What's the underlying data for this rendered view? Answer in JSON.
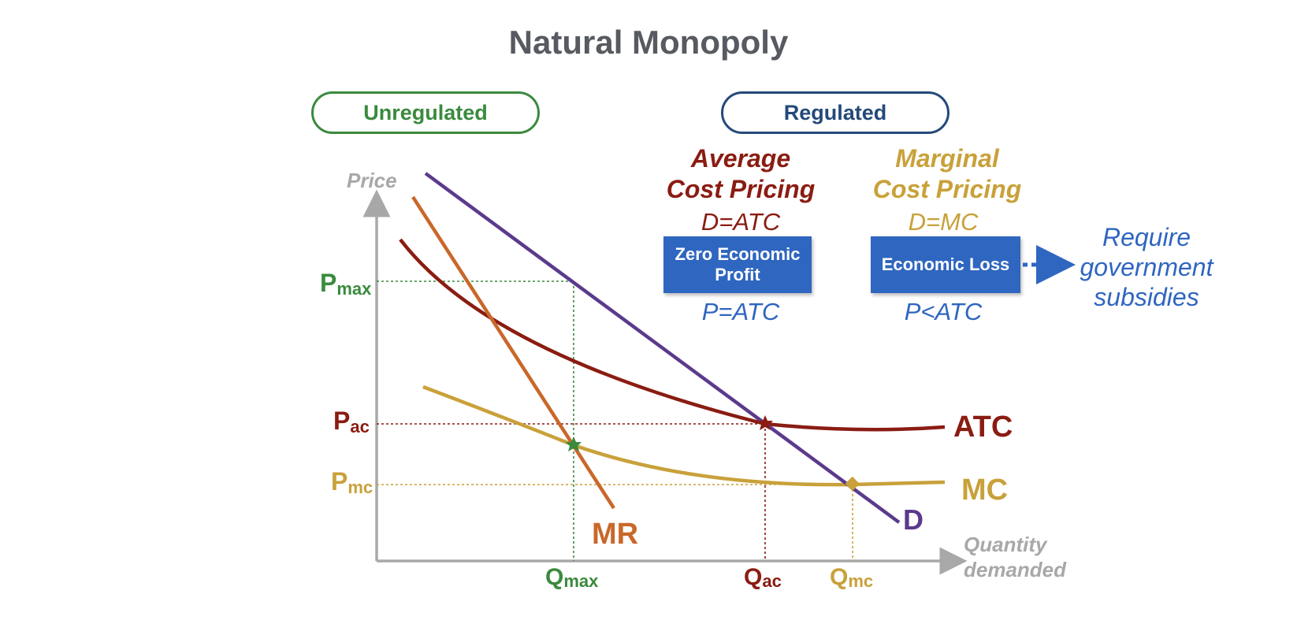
{
  "title": "Natural Monopoly",
  "tags": {
    "unregulated": "Unregulated",
    "regulated": "Regulated"
  },
  "average_cost": {
    "heading_line1": "Average",
    "heading_line2": "Cost Pricing",
    "condition": "D=ATC",
    "outcome_line1": "Zero Economic",
    "outcome_line2": "Profit",
    "price_relation": "P=ATC"
  },
  "marginal_cost": {
    "heading_line1": "Marginal",
    "heading_line2": "Cost Pricing",
    "condition": "D=MC",
    "outcome": "Economic Loss",
    "price_relation": "P<ATC"
  },
  "subsidy_note": [
    "Require",
    "government",
    "subsidies"
  ],
  "graph": {
    "y_axis_label": "Price",
    "x_axis_label_line1": "Quantity",
    "x_axis_label_line2": "demanded",
    "price_labels": [
      {
        "main": "P",
        "sub": "max",
        "color": "#3a8a3e"
      },
      {
        "main": "P",
        "sub": "ac",
        "color": "#8a1c12"
      },
      {
        "main": "P",
        "sub": "mc",
        "color": "#c9a13a"
      }
    ],
    "quantity_labels": [
      {
        "main": "Q",
        "sub": "max",
        "color": "#3a8a3e"
      },
      {
        "main": "Q",
        "sub": "ac",
        "color": "#8a1c12"
      },
      {
        "main": "Q",
        "sub": "mc",
        "color": "#c9a13a"
      }
    ],
    "curves": {
      "ATC": {
        "label": "ATC",
        "color": "#8a1c12"
      },
      "MC": {
        "label": "MC",
        "color": "#c9a13a"
      },
      "D": {
        "label": "D",
        "color": "#5b3a8c"
      },
      "MR": {
        "label": "MR",
        "color": "#c8682a"
      }
    },
    "axis_color": "#a8a8a8",
    "arrow_color": "#2f66c0"
  }
}
